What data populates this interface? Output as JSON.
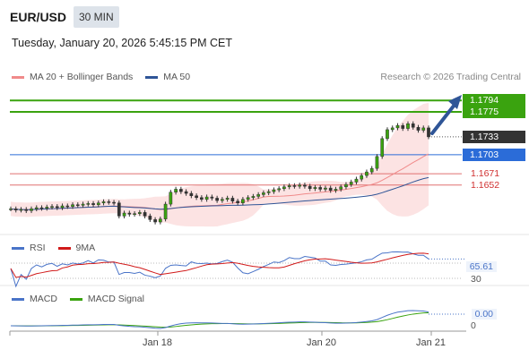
{
  "header": {
    "symbol": "EUR/USD",
    "timeframe": "30 MIN",
    "datetime": "Tuesday, January 20, 2026 5:45:15 PM CET",
    "research": "Research © 2026 Trading Central"
  },
  "legend_main": [
    {
      "label": "MA 20 + Bollinger Bands",
      "color": "#f08a8a"
    },
    {
      "label": "MA 50",
      "color": "#2f5597"
    }
  ],
  "legend_rsi": [
    {
      "label": "RSI",
      "color": "#4a74c8"
    },
    {
      "label": "9MA",
      "color": "#d11a1a"
    }
  ],
  "legend_macd": [
    {
      "label": "MACD",
      "color": "#4a74c8"
    },
    {
      "label": "MACD Signal",
      "color": "#3aa30f"
    }
  ],
  "levels": [
    {
      "price": 1.1794,
      "label": "1.1794",
      "kind": "resistance",
      "color": "#3aa30f"
    },
    {
      "price": 1.1775,
      "label": "1.1775",
      "kind": "resistance",
      "color": "#3aa30f"
    },
    {
      "price": 1.1733,
      "label": "1.1733",
      "kind": "current",
      "color": "#333333"
    },
    {
      "price": 1.1703,
      "label": "1.1703",
      "kind": "pivot",
      "color": "#2b6cd8"
    },
    {
      "price": 1.1671,
      "label": "1.1671",
      "kind": "support",
      "color": "#e07070"
    },
    {
      "price": 1.1652,
      "label": "1.1652",
      "kind": "support",
      "color": "#e07070"
    }
  ],
  "rsi": {
    "value_label": "65.61",
    "tick_label": "30"
  },
  "macd": {
    "value_label": "0.00",
    "tick_label": "0"
  },
  "chart_data": {
    "type": "line",
    "x_tick_labels": [
      "Jan 18",
      "Jan 20",
      "Jan 21"
    ],
    "price_ylim": [
      1.1575,
      1.182
    ],
    "closes": [
      1.1612,
      1.161,
      1.1611,
      1.1609,
      1.1612,
      1.1614,
      1.1613,
      1.1615,
      1.1616,
      1.1614,
      1.1617,
      1.1616,
      1.1619,
      1.1618,
      1.162,
      1.1621,
      1.1619,
      1.1622,
      1.1624,
      1.1623,
      1.1622,
      1.16,
      1.1605,
      1.1603,
      1.1604,
      1.1606,
      1.16,
      1.1594,
      1.159,
      1.1595,
      1.162,
      1.164,
      1.1645,
      1.1641,
      1.1638,
      1.1634,
      1.1631,
      1.1628,
      1.1632,
      1.163,
      1.1626,
      1.1628,
      1.163,
      1.1625,
      1.1622,
      1.1628,
      1.1631,
      1.1633,
      1.1636,
      1.1639,
      1.1641,
      1.1644,
      1.1646,
      1.1649,
      1.1651,
      1.165,
      1.1652,
      1.165,
      1.1646,
      1.1648,
      1.1645,
      1.1647,
      1.1643,
      1.1645,
      1.1649,
      1.1653,
      1.1657,
      1.1662,
      1.1668,
      1.1674,
      1.168,
      1.17,
      1.173,
      1.1745,
      1.1748,
      1.1752,
      1.1747,
      1.1755,
      1.1749,
      1.1744,
      1.1748,
      1.1733
    ]
  }
}
